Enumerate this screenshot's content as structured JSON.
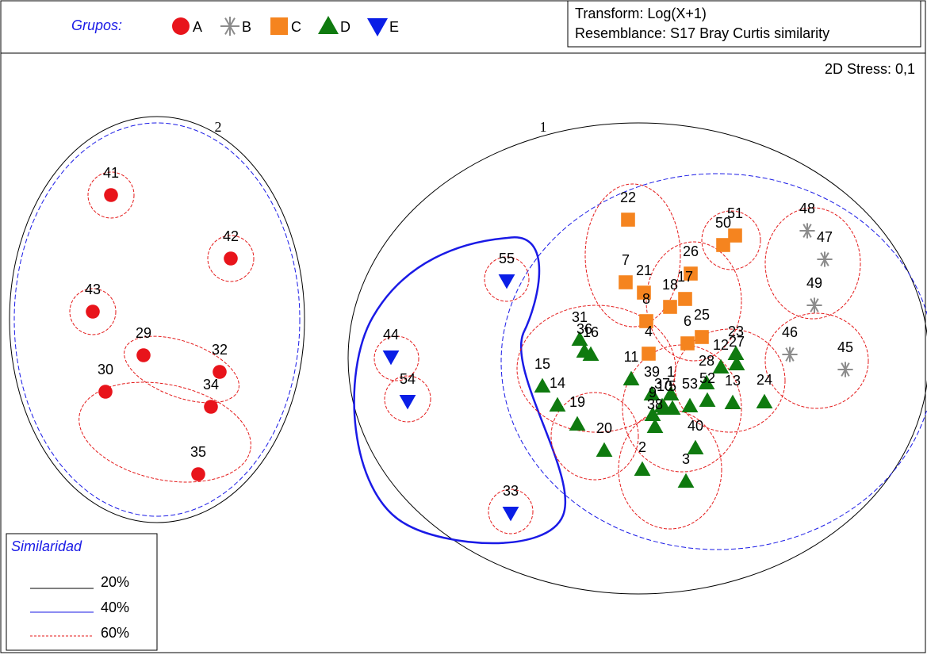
{
  "header": {
    "groups_title": "Grupos:",
    "transform": "Transform: Log(X+1)",
    "resemblance": "Resemblance: S17 Bray Curtis similarity",
    "stress": "2D Stress: 0,1"
  },
  "cluster_labels": [
    "2",
    "1"
  ],
  "similarity_legend": {
    "title": "Similaridad",
    "items": [
      "20%",
      "40%",
      "60%"
    ]
  },
  "chart_data": {
    "type": "scatter",
    "xlim": [
      0,
      1153
    ],
    "ylim": [
      0,
      752
    ],
    "series": [
      {
        "name": "A",
        "color": "#e8141b",
        "marker": "circle",
        "labels": [
          "41",
          "42",
          "43",
          "29",
          "32",
          "30",
          "34",
          "35"
        ],
        "x": [
          132,
          283,
          109,
          173,
          269,
          125,
          258,
          242
        ],
        "y": [
          574,
          494,
          427,
          372,
          351,
          326,
          307,
          222
        ]
      },
      {
        "name": "B",
        "color": "#8c8c8c",
        "marker": "star",
        "labels": [
          "48",
          "47",
          "49",
          "46",
          "45"
        ],
        "x": [
          1010,
          1032,
          1019,
          988,
          1058
        ],
        "y": [
          529,
          493,
          435,
          373,
          354
        ]
      },
      {
        "name": "C",
        "color": "#f5841f",
        "marker": "square",
        "labels": [
          "22",
          "51",
          "50",
          "26",
          "7",
          "21",
          "17",
          "18",
          "25",
          "8",
          "6",
          "4"
        ],
        "x": [
          784,
          919,
          904,
          863,
          781,
          804,
          856,
          837,
          877,
          807,
          859,
          810
        ],
        "y": [
          543,
          523,
          511,
          475,
          464,
          451,
          443,
          433,
          395,
          415,
          387,
          374
        ]
      },
      {
        "name": "D",
        "color": "#0f7a0f",
        "marker": "triangle-up",
        "labels": [
          "31",
          "36",
          "16",
          "15",
          "14",
          "19",
          "20",
          "2",
          "3",
          "40",
          "23",
          "12",
          "27",
          "28",
          "39",
          "1",
          "5",
          "52",
          "53",
          "13",
          "24",
          "37",
          "9",
          "10",
          "38",
          "11"
        ],
        "x": [
          723,
          729,
          737,
          676,
          695,
          720,
          754,
          802,
          857,
          869,
          920,
          901,
          921,
          883,
          814,
          838,
          840,
          884,
          862,
          916,
          956,
          827,
          815,
          830,
          818,
          788
        ],
        "y": [
          392,
          377,
          373,
          333,
          309,
          285,
          252,
          228,
          213,
          255,
          374,
          357,
          361,
          337,
          323,
          323,
          305,
          315,
          308,
          312,
          313,
          308,
          297,
          305,
          282,
          342
        ]
      },
      {
        "name": "E",
        "color": "#0a1ee6",
        "marker": "triangle-down",
        "labels": [
          "55",
          "44",
          "54",
          "33"
        ],
        "x": [
          631,
          485,
          506,
          636
        ],
        "y": [
          466,
          370,
          314,
          173
        ]
      }
    ]
  }
}
